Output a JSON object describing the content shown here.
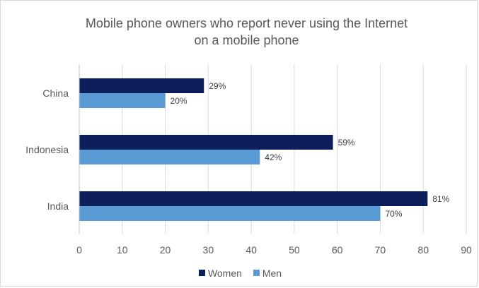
{
  "chart_data": {
    "type": "bar",
    "orientation": "horizontal",
    "title": "Mobile phone owners who report never using the Internet on a mobile phone",
    "title_lines": [
      "Mobile phone owners who report never using the Internet",
      "on a mobile phone"
    ],
    "categories": [
      "China",
      "Indonesia",
      "India"
    ],
    "series": [
      {
        "name": "Women",
        "values": [
          29,
          59,
          81
        ],
        "labels": [
          "29%",
          "59%",
          "81%"
        ],
        "color": "#0c1f5c"
      },
      {
        "name": "Men",
        "values": [
          20,
          42,
          70
        ],
        "labels": [
          "20%",
          "42%",
          "70%"
        ],
        "color": "#5b9bd5"
      }
    ],
    "xlim": [
      0,
      90
    ],
    "x_ticks": [
      0,
      10,
      20,
      30,
      40,
      50,
      60,
      70,
      80,
      90
    ],
    "grid": true,
    "legend_position": "bottom"
  },
  "colors": {
    "text": "#595959",
    "gridline": "#d9d9d9",
    "axis": "#bfbfbf"
  }
}
